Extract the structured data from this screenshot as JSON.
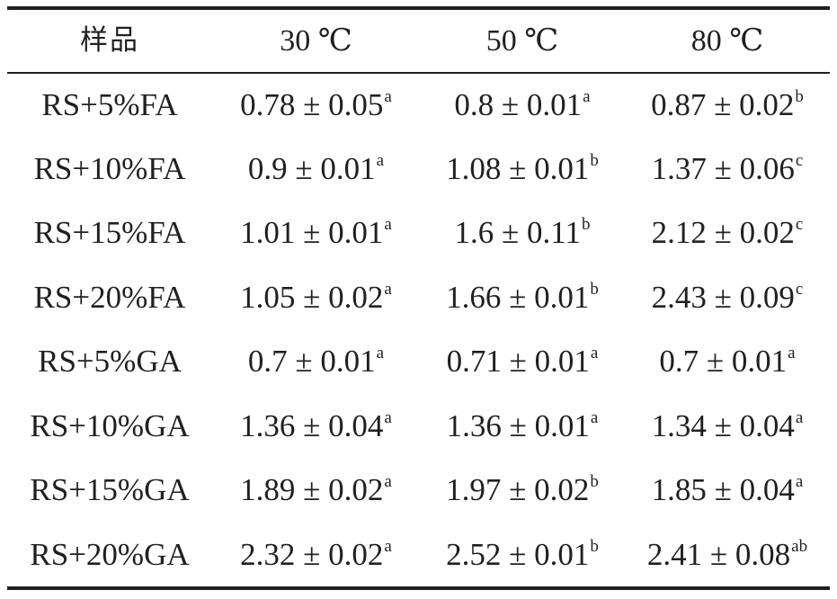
{
  "table": {
    "headers": [
      "样品",
      "30 ℃",
      "50 ℃",
      "80 ℃"
    ],
    "rows": [
      {
        "sample": "RS+5%FA",
        "cells": [
          {
            "value": "0.78 ± 0.05",
            "sig": "a"
          },
          {
            "value": "0.8 ± 0.01",
            "sig": "a"
          },
          {
            "value": "0.87 ± 0.02",
            "sig": "b"
          }
        ]
      },
      {
        "sample": "RS+10%FA",
        "cells": [
          {
            "value": "0.9 ± 0.01",
            "sig": "a"
          },
          {
            "value": "1.08 ± 0.01",
            "sig": "b"
          },
          {
            "value": "1.37 ± 0.06",
            "sig": "c"
          }
        ]
      },
      {
        "sample": "RS+15%FA",
        "cells": [
          {
            "value": "1.01 ± 0.01",
            "sig": "a"
          },
          {
            "value": "1.6 ± 0.11",
            "sig": "b"
          },
          {
            "value": "2.12 ± 0.02",
            "sig": "c"
          }
        ]
      },
      {
        "sample": "RS+20%FA",
        "cells": [
          {
            "value": "1.05 ± 0.02",
            "sig": "a"
          },
          {
            "value": "1.66 ± 0.01",
            "sig": "b"
          },
          {
            "value": "2.43 ± 0.09",
            "sig": "c"
          }
        ]
      },
      {
        "sample": "RS+5%GA",
        "cells": [
          {
            "value": "0.7 ± 0.01",
            "sig": "a"
          },
          {
            "value": "0.71 ± 0.01",
            "sig": "a"
          },
          {
            "value": "0.7 ± 0.01",
            "sig": "a"
          }
        ]
      },
      {
        "sample": "RS+10%GA",
        "cells": [
          {
            "value": "1.36 ± 0.04",
            "sig": "a"
          },
          {
            "value": "1.36 ± 0.01",
            "sig": "a"
          },
          {
            "value": "1.34 ± 0.04",
            "sig": "a"
          }
        ]
      },
      {
        "sample": "RS+15%GA",
        "cells": [
          {
            "value": "1.89 ± 0.02",
            "sig": "a"
          },
          {
            "value": "1.97 ± 0.02",
            "sig": "b"
          },
          {
            "value": "1.85 ± 0.04",
            "sig": "a"
          }
        ]
      },
      {
        "sample": "RS+20%GA",
        "cells": [
          {
            "value": "2.32 ± 0.02",
            "sig": "a"
          },
          {
            "value": "2.52 ± 0.01",
            "sig": "b"
          },
          {
            "value": "2.41 ± 0.08",
            "sig": "ab"
          }
        ]
      }
    ]
  }
}
